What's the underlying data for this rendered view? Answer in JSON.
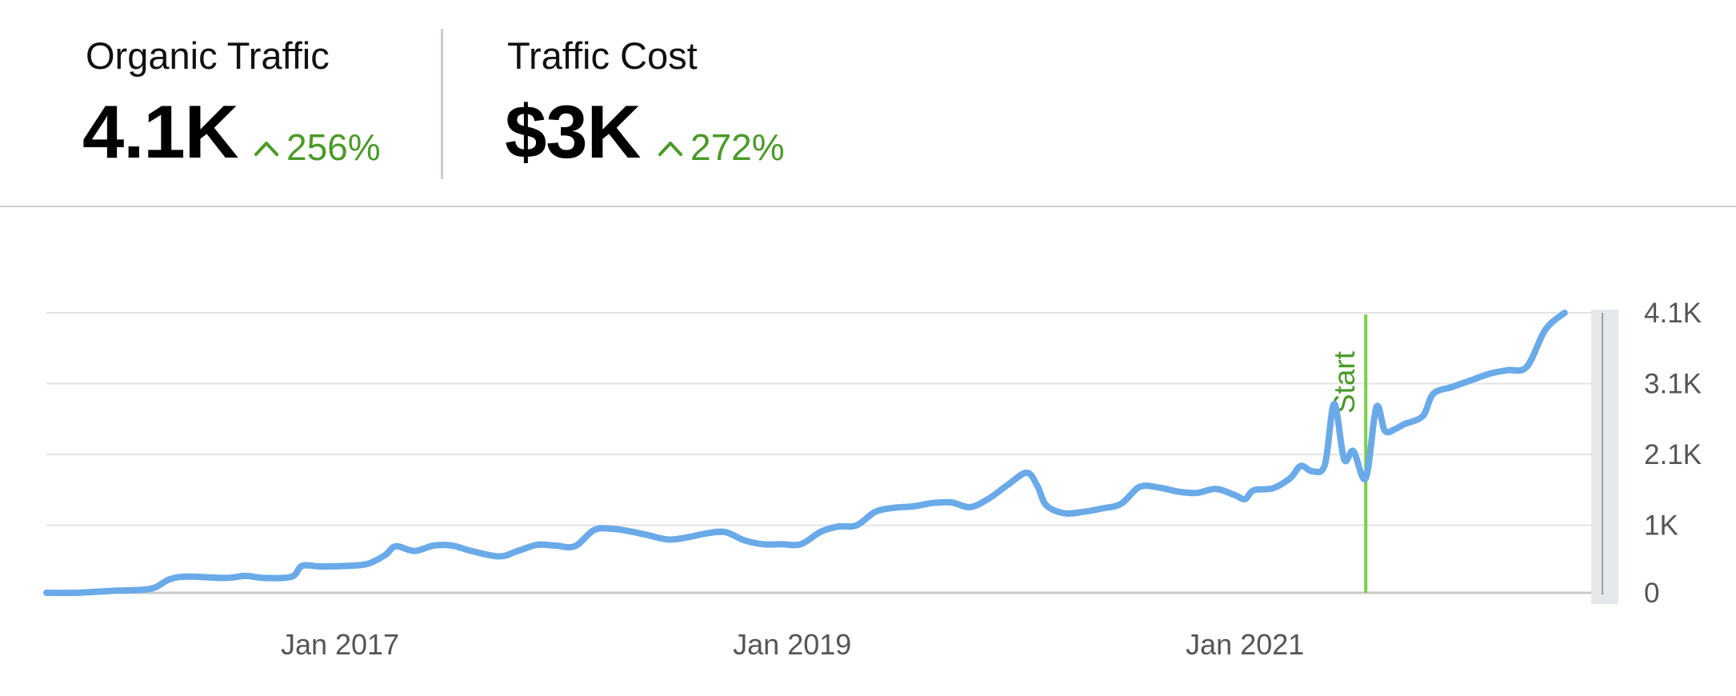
{
  "metrics": [
    {
      "title": "Organic Traffic",
      "value": "4.1K",
      "change": "256%",
      "direction": "up"
    },
    {
      "title": "Traffic Cost",
      "value": "$3K",
      "change": "272%",
      "direction": "up"
    }
  ],
  "colors": {
    "line": "#6aaae8",
    "positive": "#4c9a2a",
    "marker": "#7ad04a",
    "grid": "#e3e3e3",
    "axis": "#c8c8c8"
  },
  "chart_data": {
    "type": "line",
    "title": "",
    "xlabel": "",
    "ylabel": "",
    "x_ticks": [
      "Jan 2017",
      "Jan 2019",
      "Jan 2021"
    ],
    "y_ticks": [
      "0",
      "1K",
      "2.1K",
      "3.1K",
      "4.1K"
    ],
    "y_tick_values": [
      0,
      1000,
      2050,
      3100,
      4150
    ],
    "ylim": [
      0,
      4150
    ],
    "xlim": [
      "2015-09-15",
      "2022-08-01"
    ],
    "grid": true,
    "marker": {
      "label": "Start",
      "x": "2021-07-15"
    },
    "series": [
      {
        "points": [
          [
            "2015-09-15",
            0
          ],
          [
            "2015-11-01",
            0
          ],
          [
            "2016-01-01",
            30
          ],
          [
            "2016-03-01",
            60
          ],
          [
            "2016-04-01",
            200
          ],
          [
            "2016-05-01",
            240
          ],
          [
            "2016-07-01",
            220
          ],
          [
            "2016-08-01",
            250
          ],
          [
            "2016-09-01",
            220
          ],
          [
            "2016-10-15",
            240
          ],
          [
            "2016-11-01",
            400
          ],
          [
            "2016-12-01",
            390
          ],
          [
            "2017-01-15",
            400
          ],
          [
            "2017-02-15",
            430
          ],
          [
            "2017-03-15",
            560
          ],
          [
            "2017-04-01",
            690
          ],
          [
            "2017-05-01",
            620
          ],
          [
            "2017-06-01",
            700
          ],
          [
            "2017-07-01",
            700
          ],
          [
            "2017-08-01",
            620
          ],
          [
            "2017-09-15",
            540
          ],
          [
            "2017-10-15",
            620
          ],
          [
            "2017-11-15",
            710
          ],
          [
            "2017-12-15",
            700
          ],
          [
            "2018-01-15",
            690
          ],
          [
            "2018-02-15",
            930
          ],
          [
            "2018-03-15",
            950
          ],
          [
            "2018-04-15",
            910
          ],
          [
            "2018-05-15",
            850
          ],
          [
            "2018-06-15",
            790
          ],
          [
            "2018-07-15",
            820
          ],
          [
            "2018-08-15",
            880
          ],
          [
            "2018-09-15",
            900
          ],
          [
            "2018-10-15",
            780
          ],
          [
            "2018-11-15",
            720
          ],
          [
            "2018-12-15",
            720
          ],
          [
            "2019-01-15",
            720
          ],
          [
            "2019-02-15",
            900
          ],
          [
            "2019-03-15",
            980
          ],
          [
            "2019-04-15",
            1000
          ],
          [
            "2019-05-15",
            1200
          ],
          [
            "2019-06-15",
            1260
          ],
          [
            "2019-07-15",
            1280
          ],
          [
            "2019-08-15",
            1330
          ],
          [
            "2019-09-15",
            1340
          ],
          [
            "2019-10-15",
            1270
          ],
          [
            "2019-11-15",
            1400
          ],
          [
            "2019-12-15",
            1600
          ],
          [
            "2020-01-15",
            1780
          ],
          [
            "2020-02-01",
            1580
          ],
          [
            "2020-02-15",
            1300
          ],
          [
            "2020-03-15",
            1180
          ],
          [
            "2020-04-15",
            1200
          ],
          [
            "2020-05-15",
            1250
          ],
          [
            "2020-06-15",
            1320
          ],
          [
            "2020-07-15",
            1570
          ],
          [
            "2020-08-15",
            1560
          ],
          [
            "2020-09-15",
            1500
          ],
          [
            "2020-10-15",
            1480
          ],
          [
            "2020-11-15",
            1540
          ],
          [
            "2020-12-15",
            1450
          ],
          [
            "2021-01-01",
            1390
          ],
          [
            "2021-01-15",
            1520
          ],
          [
            "2021-02-15",
            1550
          ],
          [
            "2021-03-15",
            1700
          ],
          [
            "2021-04-01",
            1880
          ],
          [
            "2021-04-20",
            1800
          ],
          [
            "2021-05-10",
            1900
          ],
          [
            "2021-05-25",
            2800
          ],
          [
            "2021-06-10",
            1980
          ],
          [
            "2021-06-25",
            2100
          ],
          [
            "2021-07-15",
            1700
          ],
          [
            "2021-08-01",
            2750
          ],
          [
            "2021-08-15",
            2400
          ],
          [
            "2021-09-01",
            2430
          ],
          [
            "2021-09-15",
            2500
          ],
          [
            "2021-10-15",
            2620
          ],
          [
            "2021-11-01",
            2950
          ],
          [
            "2021-12-01",
            3050
          ],
          [
            "2022-01-01",
            3150
          ],
          [
            "2022-02-01",
            3250
          ],
          [
            "2022-03-01",
            3300
          ],
          [
            "2022-04-01",
            3350
          ],
          [
            "2022-05-01",
            3900
          ],
          [
            "2022-06-01",
            4150
          ]
        ]
      }
    ]
  }
}
